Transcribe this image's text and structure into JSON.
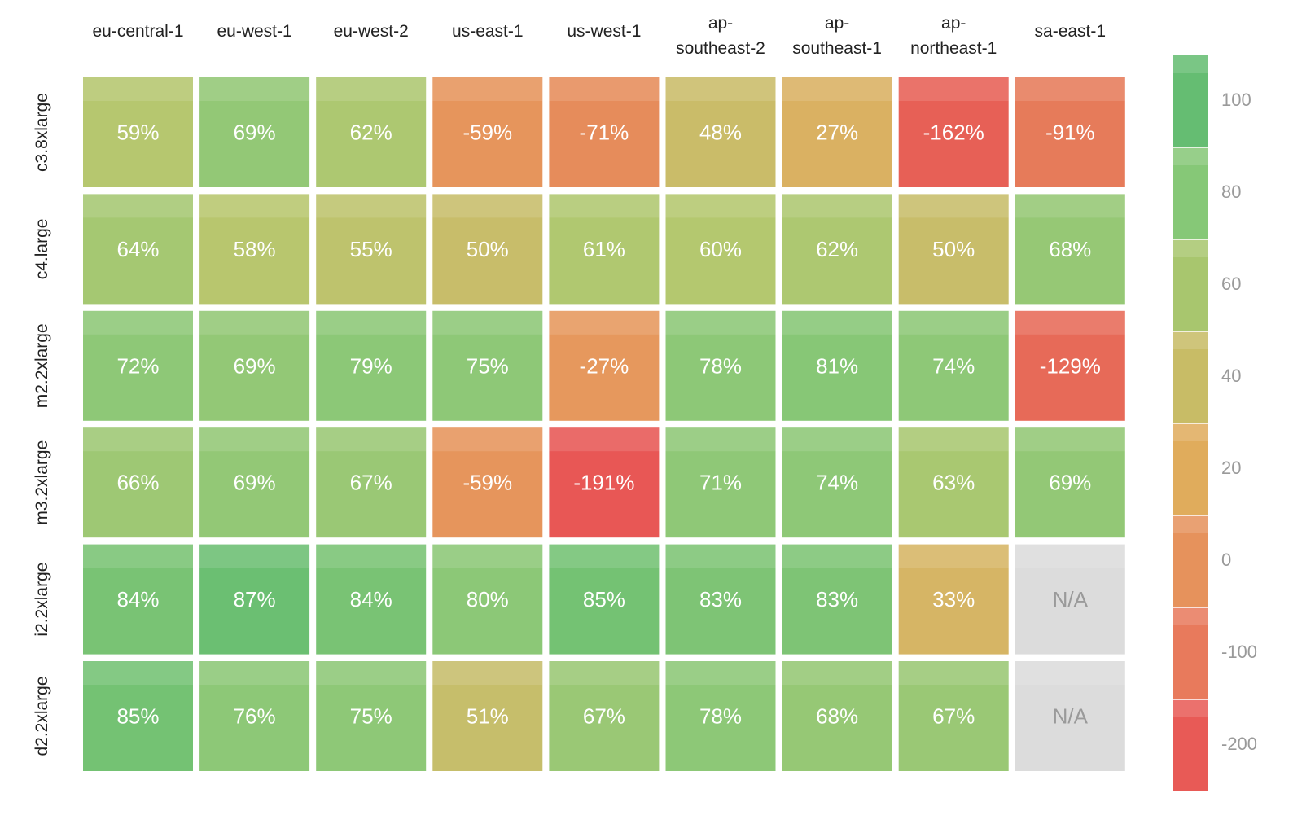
{
  "chart_data": {
    "type": "heatmap",
    "columns": [
      "eu-central-1",
      "eu-west-1",
      "eu-west-2",
      "us-east-1",
      "us-west-1",
      "ap-southeast-2",
      "ap-southeast-1",
      "ap-northeast-1",
      "sa-east-1"
    ],
    "column_label_lines": [
      [
        "eu-central-1"
      ],
      [
        "eu-west-1"
      ],
      [
        "eu-west-2"
      ],
      [
        "us-east-1"
      ],
      [
        "us-west-1"
      ],
      [
        "ap-",
        "southeast-2"
      ],
      [
        "ap-",
        "southeast-1"
      ],
      [
        "ap-",
        "northeast-1"
      ],
      [
        "sa-east-1"
      ]
    ],
    "rows": [
      "c3.8xlarge",
      "c4.large",
      "m2.2xlarge",
      "m3.2xlarge",
      "i2.2xlarge",
      "d2.2xlarge"
    ],
    "values": [
      [
        59,
        69,
        62,
        -59,
        -71,
        48,
        27,
        -162,
        -91
      ],
      [
        64,
        58,
        55,
        50,
        61,
        60,
        62,
        50,
        68
      ],
      [
        72,
        69,
        79,
        75,
        -27,
        78,
        81,
        74,
        -129
      ],
      [
        66,
        69,
        67,
        -59,
        -191,
        71,
        74,
        63,
        69
      ],
      [
        84,
        87,
        84,
        80,
        85,
        83,
        83,
        33,
        null
      ],
      [
        85,
        76,
        75,
        51,
        67,
        78,
        68,
        67,
        null
      ]
    ],
    "labels": [
      [
        "59%",
        "69%",
        "62%",
        "-59%",
        "-71%",
        "48%",
        "27%",
        "-162%",
        "-91%"
      ],
      [
        "64%",
        "58%",
        "55%",
        "50%",
        "61%",
        "60%",
        "62%",
        "50%",
        "68%"
      ],
      [
        "72%",
        "69%",
        "79%",
        "75%",
        "-27%",
        "78%",
        "81%",
        "74%",
        "-129%"
      ],
      [
        "66%",
        "69%",
        "67%",
        "-59%",
        "-191%",
        "71%",
        "74%",
        "63%",
        "69%"
      ],
      [
        "84%",
        "87%",
        "84%",
        "80%",
        "85%",
        "83%",
        "83%",
        "33%",
        "N/A"
      ],
      [
        "85%",
        "76%",
        "75%",
        "51%",
        "67%",
        "78%",
        "68%",
        "67%",
        "N/A"
      ]
    ],
    "missing_label": "N/A",
    "colorbar": {
      "ticks": [
        100,
        80,
        60,
        40,
        20,
        0,
        -100,
        -200
      ],
      "segments": [
        {
          "color": "#65bd72"
        },
        {
          "color": "#86c877"
        },
        {
          "color": "#a8c66e"
        },
        {
          "color": "#c8bc66"
        },
        {
          "color": "#e0ac5c"
        },
        {
          "color": "#e6925c"
        },
        {
          "color": "#e87a5c"
        },
        {
          "color": "#e85a56"
        }
      ]
    },
    "colors": {
      "na": "#dcdcdc",
      "scale": [
        {
          "v": 87,
          "c": "#6bbf72"
        },
        {
          "v": 80,
          "c": "#8cc877"
        },
        {
          "v": 70,
          "c": "#8fc877"
        },
        {
          "v": 60,
          "c": "#b4c86f"
        },
        {
          "v": 50,
          "c": "#c8bd6a"
        },
        {
          "v": 30,
          "c": "#d8b464"
        },
        {
          "v": 20,
          "c": "#e0ab5e"
        },
        {
          "v": 0,
          "c": "#e69a5e"
        },
        {
          "v": -60,
          "c": "#e6955c"
        },
        {
          "v": -100,
          "c": "#e6735a"
        },
        {
          "v": -200,
          "c": "#e85454"
        }
      ]
    }
  }
}
